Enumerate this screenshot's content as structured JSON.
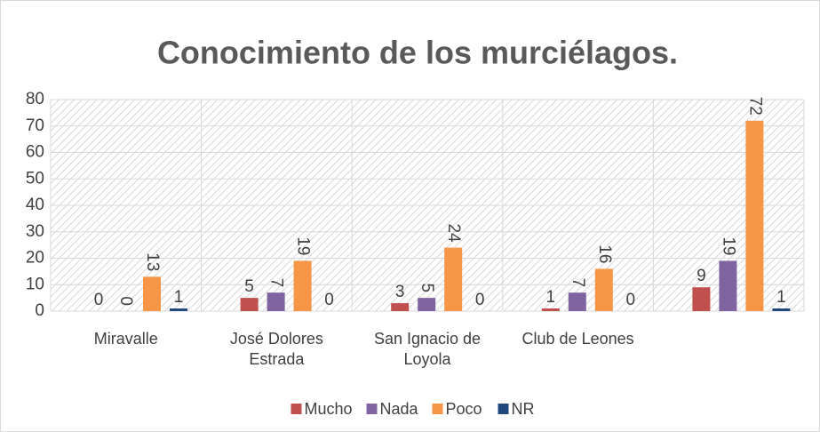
{
  "chart_data": {
    "type": "bar",
    "title": "Conocimiento de los murciélagos.",
    "categories": [
      "Miravalle",
      "José Dolores Estrada",
      "San Ignacio de Loyola",
      "Club de Leones",
      null
    ],
    "series": [
      {
        "name": "Mucho",
        "color": "#c0504d",
        "values": [
          0,
          5,
          3,
          1,
          9
        ]
      },
      {
        "name": "Nada",
        "color": "#8064a2",
        "values": [
          0,
          7,
          5,
          7,
          19
        ]
      },
      {
        "name": "Poco",
        "color": "#f79646",
        "values": [
          13,
          19,
          24,
          16,
          72
        ]
      },
      {
        "name": "NR",
        "color": "#1f497d",
        "values": [
          1,
          0,
          0,
          0,
          1
        ]
      }
    ],
    "ylim": [
      0,
      80
    ],
    "yticks": [
      0,
      10,
      20,
      30,
      40,
      50,
      60,
      70,
      80
    ],
    "grid": true,
    "legend": "bottom"
  }
}
